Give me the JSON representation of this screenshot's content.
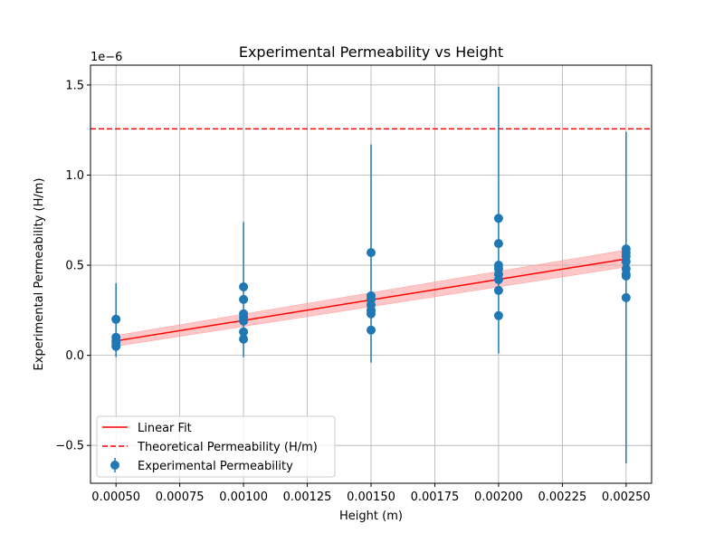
{
  "chart_data": {
    "type": "scatter",
    "title": "Experimental Permeability vs Height",
    "xlabel": "Height (m)",
    "ylabel": "Experimental Permeability (H/m)",
    "y_scale_label": "1e−6",
    "xlim": [
      0.0004,
      0.0026
    ],
    "ylim": [
      -0.71,
      1.61
    ],
    "xticks": [
      0.0005,
      0.00075,
      0.001,
      0.00125,
      0.0015,
      0.00175,
      0.002,
      0.00225,
      0.0025
    ],
    "xtick_labels": [
      "0.00050",
      "0.00075",
      "0.00100",
      "0.00125",
      "0.00150",
      "0.00175",
      "0.00200",
      "0.00225",
      "0.00250"
    ],
    "yticks": [
      -0.5,
      0.0,
      0.5,
      1.0,
      1.5
    ],
    "ytick_labels": [
      "−0.5",
      "0.0",
      "0.5",
      "1.0",
      "1.5"
    ],
    "grid": true,
    "legend_position": "lower-left",
    "colors": {
      "points": "#1f77b4",
      "fit": "#ff0000",
      "band": "#ff9999",
      "theory": "#ff0000"
    },
    "series": [
      {
        "name": "Experimental Permeability",
        "kind": "errorbar",
        "points": [
          {
            "x": 0.0005,
            "y": 0.2
          },
          {
            "x": 0.0005,
            "y": 0.1
          },
          {
            "x": 0.0005,
            "y": 0.08
          },
          {
            "x": 0.0005,
            "y": 0.07
          },
          {
            "x": 0.0005,
            "y": 0.05
          },
          {
            "x": 0.001,
            "y": 0.38
          },
          {
            "x": 0.001,
            "y": 0.31
          },
          {
            "x": 0.001,
            "y": 0.23
          },
          {
            "x": 0.001,
            "y": 0.21
          },
          {
            "x": 0.001,
            "y": 0.19
          },
          {
            "x": 0.001,
            "y": 0.13
          },
          {
            "x": 0.001,
            "y": 0.09
          },
          {
            "x": 0.0015,
            "y": 0.57
          },
          {
            "x": 0.0015,
            "y": 0.33
          },
          {
            "x": 0.0015,
            "y": 0.31
          },
          {
            "x": 0.0015,
            "y": 0.28
          },
          {
            "x": 0.0015,
            "y": 0.25
          },
          {
            "x": 0.0015,
            "y": 0.23
          },
          {
            "x": 0.0015,
            "y": 0.14
          },
          {
            "x": 0.002,
            "y": 0.76
          },
          {
            "x": 0.002,
            "y": 0.62
          },
          {
            "x": 0.002,
            "y": 0.5
          },
          {
            "x": 0.002,
            "y": 0.48
          },
          {
            "x": 0.002,
            "y": 0.45
          },
          {
            "x": 0.002,
            "y": 0.42
          },
          {
            "x": 0.002,
            "y": 0.36
          },
          {
            "x": 0.002,
            "y": 0.22
          },
          {
            "x": 0.0025,
            "y": 0.59
          },
          {
            "x": 0.0025,
            "y": 0.57
          },
          {
            "x": 0.0025,
            "y": 0.55
          },
          {
            "x": 0.0025,
            "y": 0.52
          },
          {
            "x": 0.0025,
            "y": 0.48
          },
          {
            "x": 0.0025,
            "y": 0.45
          },
          {
            "x": 0.0025,
            "y": 0.44
          },
          {
            "x": 0.0025,
            "y": 0.32
          }
        ],
        "error_ranges": [
          {
            "x": 0.0005,
            "ymin": -0.01,
            "ymax": 0.4
          },
          {
            "x": 0.001,
            "ymin": -0.01,
            "ymax": 0.74
          },
          {
            "x": 0.0015,
            "ymin": -0.04,
            "ymax": 1.17
          },
          {
            "x": 0.002,
            "ymin": 0.01,
            "ymax": 1.49
          },
          {
            "x": 0.0025,
            "ymin": -0.6,
            "ymax": 1.24
          }
        ]
      },
      {
        "name": "Linear Fit",
        "kind": "line",
        "x": [
          0.0005,
          0.0025
        ],
        "y": [
          0.08,
          0.535
        ],
        "band_lower": [
          0.05,
          0.49
        ],
        "band_upper": [
          0.11,
          0.585
        ]
      },
      {
        "name": "Theoretical Permeability (H/m)",
        "kind": "hline",
        "y": 1.2566
      }
    ]
  }
}
